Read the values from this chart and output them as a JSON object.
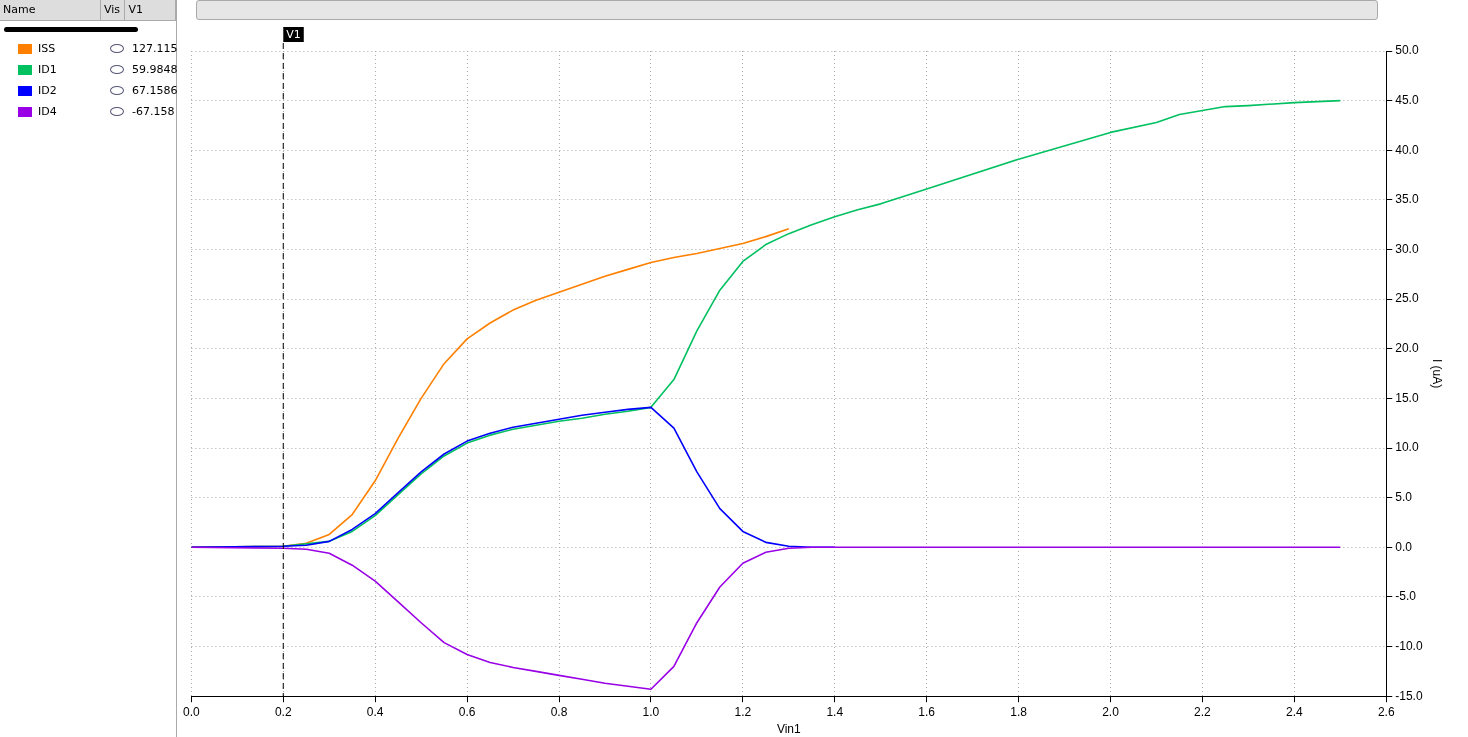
{
  "chart_data": {
    "type": "line",
    "xlabel": "Vin1",
    "ylabel": "I (uA)",
    "xlim": [
      0,
      2.6
    ],
    "ylim": [
      -15,
      50
    ],
    "xticks": [
      {
        "value": 0,
        "label": "0.0"
      },
      {
        "value": 0.2,
        "label": "0.2"
      },
      {
        "value": 0.4,
        "label": "0.4"
      },
      {
        "value": 0.6,
        "label": "0.6"
      },
      {
        "value": 0.8,
        "label": "0.8"
      },
      {
        "value": 1.0,
        "label": "1.0"
      },
      {
        "value": 1.2,
        "label": "1.2"
      },
      {
        "value": 1.4,
        "label": "1.4"
      },
      {
        "value": 1.6,
        "label": "1.6"
      },
      {
        "value": 1.8,
        "label": "1.8"
      },
      {
        "value": 2.0,
        "label": "2.0"
      },
      {
        "value": 2.2,
        "label": "2.2"
      },
      {
        "value": 2.4,
        "label": "2.4"
      },
      {
        "value": 2.6,
        "label": "2.6"
      }
    ],
    "yticks": [
      {
        "value": -15,
        "label": "-15.0"
      },
      {
        "value": -10,
        "label": "-10.0"
      },
      {
        "value": -5,
        "label": "-5.0"
      },
      {
        "value": 0,
        "label": "0.0"
      },
      {
        "value": 5,
        "label": "5.0"
      },
      {
        "value": 10,
        "label": "10.0"
      },
      {
        "value": 15,
        "label": "15.0"
      },
      {
        "value": 20,
        "label": "20.0"
      },
      {
        "value": 25,
        "label": "25.0"
      },
      {
        "value": 30,
        "label": "30.0"
      },
      {
        "value": 35,
        "label": "35.0"
      },
      {
        "value": 40,
        "label": "40.0"
      },
      {
        "value": 45,
        "label": "45.0"
      },
      {
        "value": 50,
        "label": "50.0"
      }
    ],
    "grid": true,
    "legend": "left",
    "marker": "none",
    "line_style": "solid",
    "ref_lines": [
      {
        "axis": "x",
        "value": 0.2,
        "label": "V1",
        "color": "#000000",
        "line_style": "dashed"
      }
    ],
    "annotations": [
      "Name",
      "Vis",
      "V1",
      "127.115",
      "59.9848",
      "67.1586",
      "-67.158"
    ],
    "series": [
      {
        "name": "ISS",
        "color": "#ff8000",
        "x": [
          0,
          0.2,
          0.25,
          0.3,
          0.35,
          0.4,
          0.45,
          0.5,
          0.55,
          0.6,
          0.65,
          0.7,
          0.75,
          0.8,
          0.85,
          0.9,
          0.95,
          1.0,
          1.05,
          1.1,
          1.15,
          1.2,
          1.25,
          1.3
        ],
        "values": [
          0,
          0.1,
          0.4,
          1.3,
          3.3,
          6.7,
          11,
          15,
          18.5,
          21,
          22.6,
          23.9,
          24.9,
          25.7,
          26.5,
          27.3,
          28.0,
          28.7,
          29.2,
          29.6,
          30.1,
          30.6,
          31.3,
          32.1
        ]
      },
      {
        "name": "ID1",
        "color": "#00c060",
        "x": [
          0,
          0.2,
          0.3,
          0.35,
          0.4,
          0.45,
          0.5,
          0.55,
          0.6,
          0.65,
          0.7,
          0.75,
          0.8,
          0.85,
          0.9,
          0.95,
          1.0,
          1.05,
          1.1,
          1.15,
          1.2,
          1.25,
          1.3,
          1.35,
          1.4,
          1.45,
          1.5,
          1.6,
          1.8,
          2.0,
          2.1,
          2.15,
          2.2,
          2.25,
          2.3,
          2.4,
          2.5
        ],
        "values": [
          0,
          0.1,
          0.6,
          1.6,
          3.2,
          5.3,
          7.4,
          9.2,
          10.5,
          11.3,
          11.9,
          12.3,
          12.7,
          13.0,
          13.4,
          13.7,
          14.1,
          16.9,
          21.8,
          25.9,
          28.8,
          30.5,
          31.6,
          32.5,
          33.3,
          34.0,
          34.6,
          36.1,
          39.1,
          41.8,
          42.8,
          43.6,
          44.0,
          44.4,
          44.5,
          44.8,
          45.0
        ]
      },
      {
        "name": "ID2",
        "color": "#0000ff",
        "x": [
          0,
          0.2,
          0.25,
          0.3,
          0.35,
          0.4,
          0.45,
          0.5,
          0.55,
          0.6,
          0.65,
          0.7,
          0.75,
          0.8,
          0.85,
          0.9,
          0.95,
          1.0,
          1.05,
          1.1,
          1.15,
          1.2,
          1.25,
          1.3,
          1.35,
          1.4
        ],
        "values": [
          0,
          0.1,
          0.2,
          0.6,
          1.8,
          3.4,
          5.5,
          7.6,
          9.4,
          10.7,
          11.5,
          12.1,
          12.5,
          12.9,
          13.3,
          13.6,
          13.9,
          14.1,
          12.0,
          7.6,
          3.9,
          1.6,
          0.5,
          0.1,
          0,
          0
        ]
      },
      {
        "name": "ID4",
        "color": "#9900e6",
        "x": [
          0,
          0.2,
          0.25,
          0.3,
          0.35,
          0.4,
          0.45,
          0.5,
          0.55,
          0.6,
          0.65,
          0.7,
          0.75,
          0.8,
          0.85,
          0.9,
          0.95,
          1.0,
          1.05,
          1.1,
          1.15,
          1.2,
          1.25,
          1.3,
          1.35,
          1.5,
          2.0,
          2.5
        ],
        "values": [
          0,
          -0.1,
          -0.2,
          -0.6,
          -1.8,
          -3.4,
          -5.5,
          -7.6,
          -9.6,
          -10.8,
          -11.6,
          -12.1,
          -12.5,
          -12.9,
          -13.3,
          -13.7,
          -14.0,
          -14.3,
          -12.0,
          -7.6,
          -4.0,
          -1.6,
          -0.5,
          -0.1,
          0,
          0,
          0,
          0
        ]
      }
    ]
  }
}
